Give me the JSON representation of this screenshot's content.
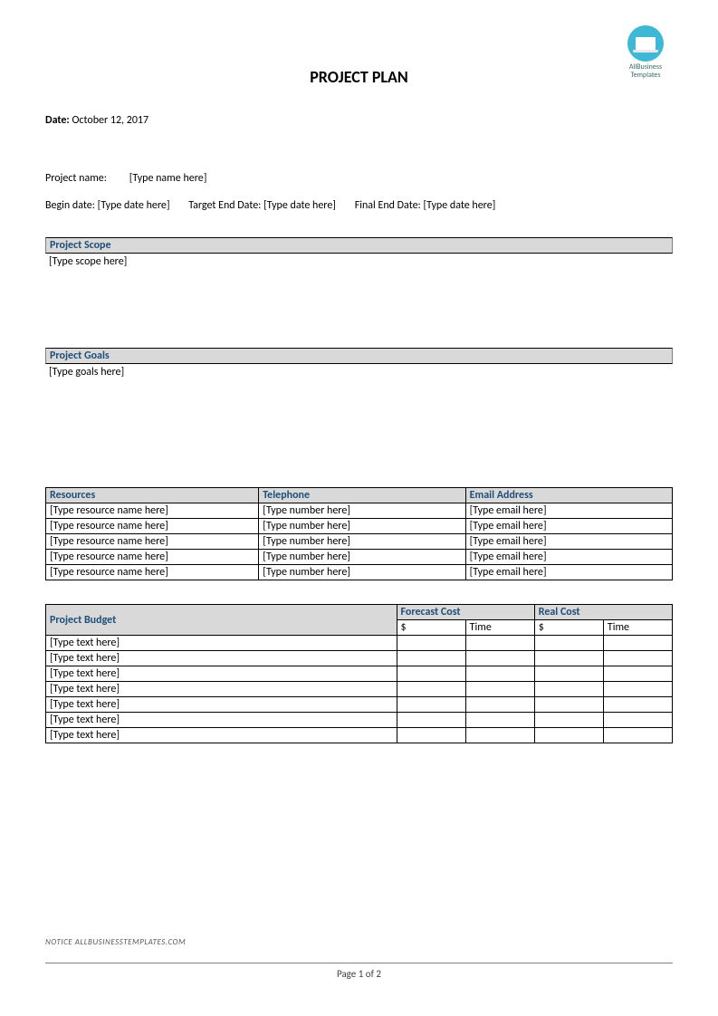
{
  "logo": {
    "line1": "AllBusiness",
    "line2": "Templates"
  },
  "title": "PROJECT PLAN",
  "date_label": "Date:",
  "date_value": "October 12, 2017",
  "meta": {
    "project_name_label": "Project name:",
    "project_name_value": "[Type name here]",
    "begin_date_label": "Begin date:",
    "begin_date_value": "[Type date here]",
    "target_end_label": "Target End Date:",
    "target_end_value": "[Type date here]",
    "final_end_label": "Final End Date:",
    "final_end_value": "[Type date here]"
  },
  "sections": {
    "scope": {
      "header": "Project Scope",
      "body": "[Type scope here]"
    },
    "goals": {
      "header": "Project Goals",
      "body": "[Type goals here]"
    }
  },
  "resources": {
    "columns": [
      "Resources",
      "Telephone",
      "Email Address"
    ],
    "rows": [
      [
        "[Type resource name here]",
        "[Type number here]",
        "[Type email here]"
      ],
      [
        "[Type resource name here]",
        "[Type number here]",
        "[Type email here]"
      ],
      [
        "[Type resource name here]",
        "[Type number here]",
        "[Type email here]"
      ],
      [
        "[Type resource name here]",
        "[Type number here]",
        "[Type email here]"
      ],
      [
        "[Type resource name here]",
        "[Type number here]",
        "[Type email here]"
      ]
    ]
  },
  "budget": {
    "header_main": "Project Budget",
    "header_forecast": "Forecast Cost",
    "header_real": "Real Cost",
    "sub_dollar": "$",
    "sub_time": "Time",
    "rows": [
      "[Type text here]",
      "[Type text here]",
      "[Type text here]",
      "[Type text here]",
      "[Type text here]",
      "[Type text here]",
      "[Type text here]"
    ]
  },
  "notice": "NOTICE  ALLBUSINESSTEMPLATES.COM",
  "page_footer": "Page 1 of 2",
  "colors": {
    "header_bg": "#d9d9d9",
    "header_text": "#1f4e79",
    "logo_circle": "#3eb8d4",
    "border": "#000000"
  }
}
